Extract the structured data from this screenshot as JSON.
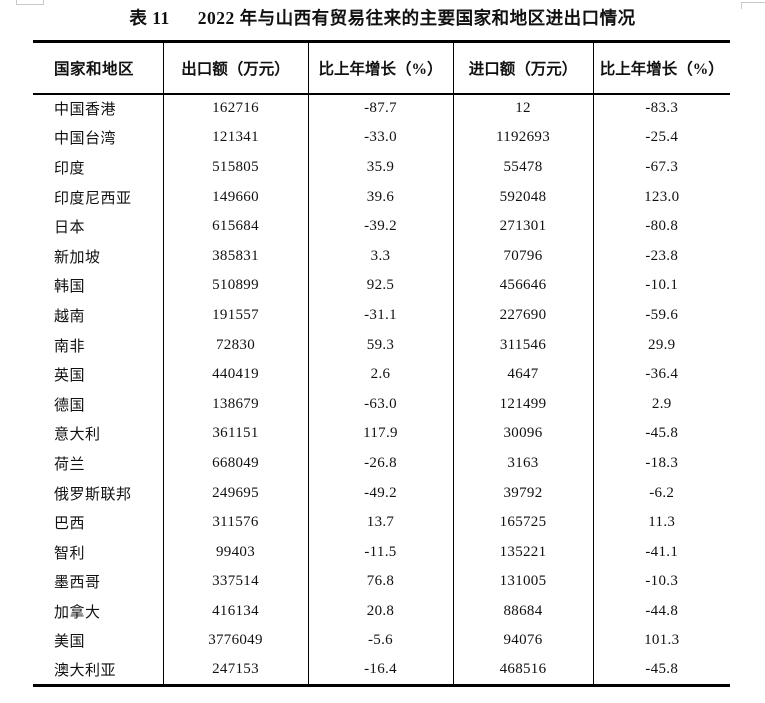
{
  "title": {
    "label": "表 11",
    "text": "2022 年与山西有贸易往来的主要国家和地区进出口情况"
  },
  "table": {
    "columns": [
      "国家和地区",
      "出口额（万元）",
      "比上年增长（%）",
      "进口额（万元）",
      "比上年增长（%）"
    ],
    "rows": [
      [
        "中国香港",
        "162716",
        "-87.7",
        "12",
        "-83.3"
      ],
      [
        "中国台湾",
        "121341",
        "-33.0",
        "1192693",
        "-25.4"
      ],
      [
        "印度",
        "515805",
        "35.9",
        "55478",
        "-67.3"
      ],
      [
        "印度尼西亚",
        "149660",
        "39.6",
        "592048",
        "123.0"
      ],
      [
        "日本",
        "615684",
        "-39.2",
        "271301",
        "-80.8"
      ],
      [
        "新加坡",
        "385831",
        "3.3",
        "70796",
        "-23.8"
      ],
      [
        "韩国",
        "510899",
        "92.5",
        "456646",
        "-10.1"
      ],
      [
        "越南",
        "191557",
        "-31.1",
        "227690",
        "-59.6"
      ],
      [
        "南非",
        "72830",
        "59.3",
        "311546",
        "29.9"
      ],
      [
        "英国",
        "440419",
        "2.6",
        "4647",
        "-36.4"
      ],
      [
        "德国",
        "138679",
        "-63.0",
        "121499",
        "2.9"
      ],
      [
        "意大利",
        "361151",
        "117.9",
        "30096",
        "-45.8"
      ],
      [
        "荷兰",
        "668049",
        "-26.8",
        "3163",
        "-18.3"
      ],
      [
        "俄罗斯联邦",
        "249695",
        "-49.2",
        "39792",
        "-6.2"
      ],
      [
        "巴西",
        "311576",
        "13.7",
        "165725",
        "11.3"
      ],
      [
        "智利",
        "99403",
        "-11.5",
        "135221",
        "-41.1"
      ],
      [
        "墨西哥",
        "337514",
        "76.8",
        "131005",
        "-10.3"
      ],
      [
        "加拿大",
        "416134",
        "20.8",
        "88684",
        "-44.8"
      ],
      [
        "美国",
        "3776049",
        "-5.6",
        "94076",
        "101.3"
      ],
      [
        "澳大利亚",
        "247153",
        "-16.4",
        "468516",
        "-45.8"
      ]
    ]
  }
}
